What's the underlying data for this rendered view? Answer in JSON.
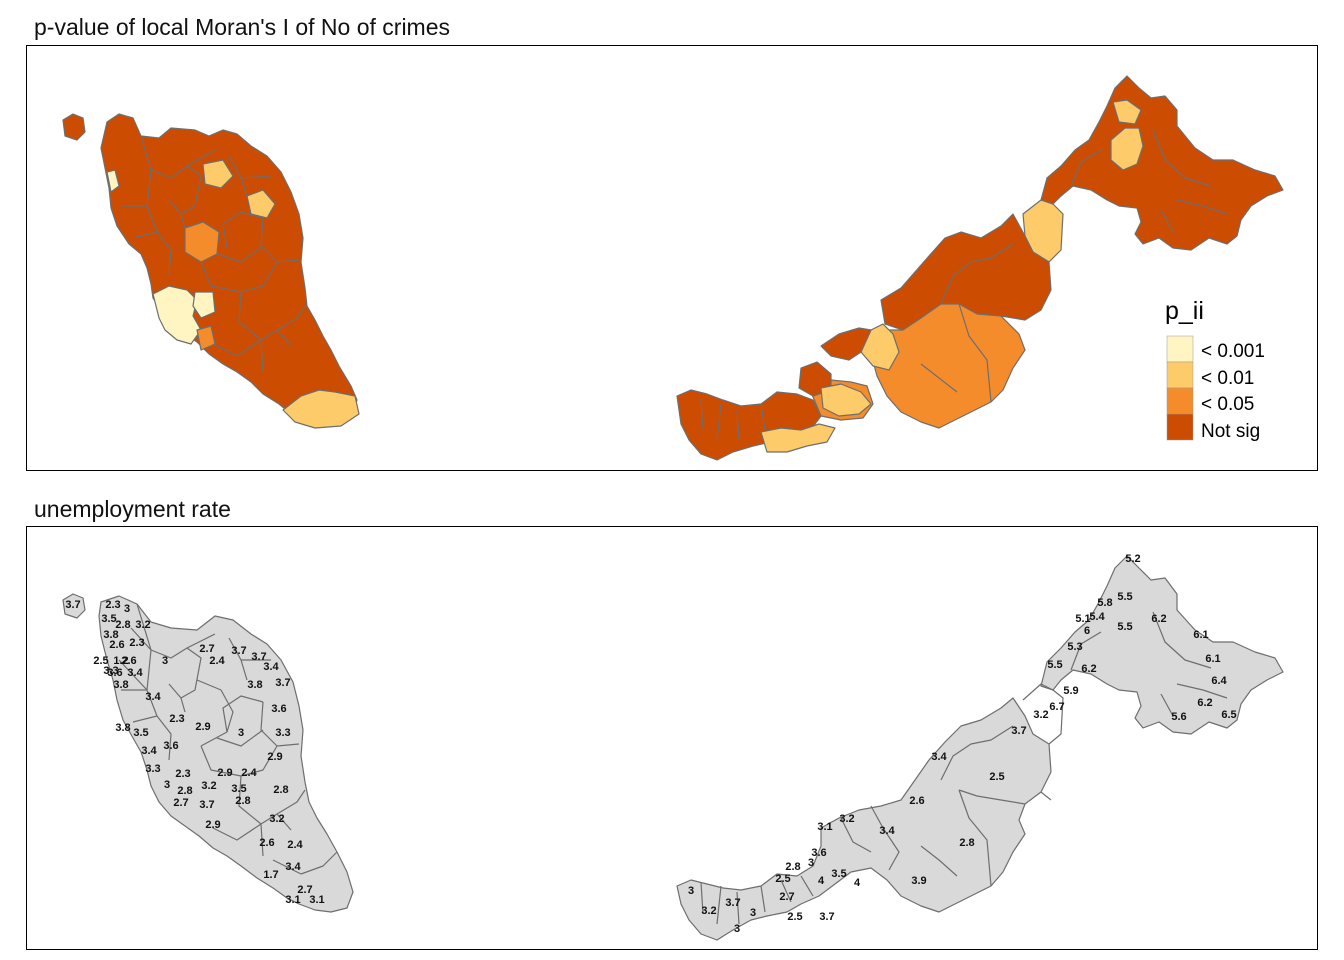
{
  "panels": {
    "top": {
      "title": "p-value of local Moran's I of No of crimes",
      "legend": {
        "title": "p_ii",
        "items": [
          {
            "label": "< 0.001",
            "color": "#FFF5C2"
          },
          {
            "label": "< 0.01",
            "color": "#FDCB6A"
          },
          {
            "label": "< 0.05",
            "color": "#F58C2C"
          },
          {
            "label": "Not sig",
            "color": "#CC4C02"
          }
        ]
      }
    },
    "bottom": {
      "title": "unemployment rate",
      "fill_color": "#D9D9D9",
      "west_labels": [
        "3.7",
        "2.3",
        "3",
        "3.5",
        "2.8",
        "3.2",
        "3.8",
        "2.6",
        "2.3",
        "2.5",
        "1.2",
        "3.6",
        "3.4",
        "2.6",
        "3.3",
        "3.8",
        "3.4",
        "3",
        "2.3",
        "2.9",
        "3.8",
        "3.5",
        "3.4",
        "3.6",
        "3.3",
        "3",
        "2.3",
        "2.8",
        "2.7",
        "3.7",
        "2.9",
        "3.2",
        "2.9",
        "2.4",
        "3.5",
        "2.7",
        "2.4",
        "3.7",
        "3.7",
        "3.4",
        "3.8",
        "3.7",
        "3",
        "3.6",
        "3.3",
        "2.9",
        "2.8",
        "2.8",
        "3.2",
        "2.6",
        "2.4",
        "1.7",
        "3.4",
        "2.7",
        "3.1",
        "3.1"
      ],
      "east_labels": [
        "5.2",
        "5.8",
        "5.5",
        "5.1",
        "5.4",
        "6",
        "6.2",
        "5.5",
        "6.1",
        "5.3",
        "6.1",
        "5.5",
        "6.2",
        "6.4",
        "5.9",
        "6.7",
        "6.2",
        "6.5",
        "5.6",
        "3.2",
        "3.7",
        "3.4",
        "2.5",
        "2.6",
        "3.1",
        "3.2",
        "3.4",
        "2.8",
        "3.6",
        "2.8",
        "3",
        "2.5",
        "3.5",
        "4",
        "4",
        "3.9",
        "3",
        "3.2",
        "3.7",
        "2.7",
        "3",
        "2.5",
        "3.7",
        "3"
      ]
    }
  }
}
